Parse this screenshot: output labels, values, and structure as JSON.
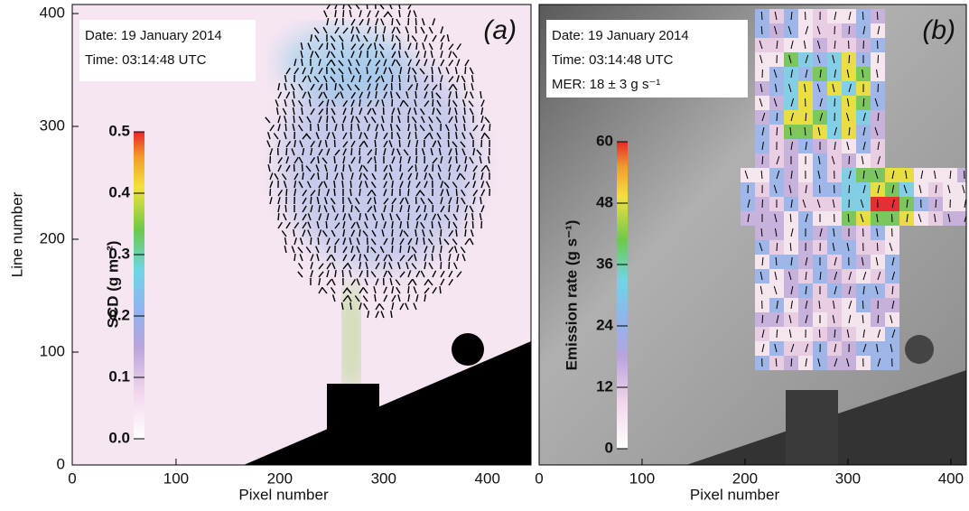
{
  "chart_data": [
    {
      "type": "heatmap",
      "panel_label": "(a)",
      "annotations": [
        "Date: 19 January 2014",
        "Time: 03:14:48 UTC"
      ],
      "xlabel": "Pixel number",
      "ylabel": "Line number",
      "xlim": [
        0,
        442
      ],
      "xticks": [
        0,
        100,
        200,
        300,
        400
      ],
      "ylim": [
        0,
        408
      ],
      "yticks": [
        0,
        100,
        200,
        300,
        400
      ],
      "colorbar": {
        "label": "SCD (g m⁻²)",
        "lim": [
          0,
          0.5
        ],
        "ticks": [
          {
            "value": 0,
            "label": "0.0"
          },
          0.1,
          0.2,
          0.3,
          0.4,
          0.5
        ]
      }
    },
    {
      "type": "heatmap",
      "panel_label": "(b)",
      "annotations": [
        "Date: 19 January 2014",
        "Time: 03:14:48 UTC",
        "MER: 18 ± 3 g s⁻¹"
      ],
      "xlabel": "Pixel number",
      "xlim": [
        0,
        415
      ],
      "xticks": [
        0,
        100,
        200,
        300,
        400
      ],
      "ylim": [
        0,
        408
      ],
      "colorbar": {
        "label": "Emission rate (g s⁻¹)",
        "lim": [
          0,
          60
        ],
        "ticks": [
          0,
          12,
          24,
          36,
          48,
          60
        ]
      }
    }
  ]
}
